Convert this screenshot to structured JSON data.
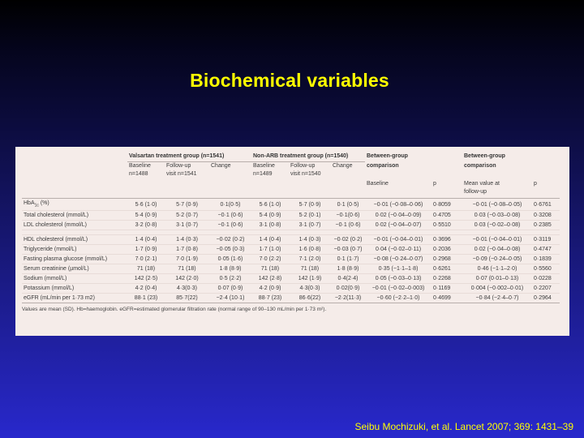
{
  "slide": {
    "title": "Biochemical variables",
    "citation": "Seibu Mochizuki, et al. Lancet 2007; 369: 1431–39"
  },
  "table": {
    "groups": {
      "valsartan": "Valsartan treatment group (n=1541)",
      "nonarb": "Non-ARB treatment group (n=1540)",
      "between_baseline_l1": "Between-group",
      "between_baseline_l2": "comparison",
      "between_followup_l1": "Between-group",
      "between_followup_l2": "comparison"
    },
    "subheaders": {
      "val_baseline_l1": "Baseline",
      "val_baseline_l2": "n=1488",
      "val_followup_l1": "Follow-up",
      "val_followup_l2": "visit  n=1541",
      "val_change": "Change",
      "non_baseline_l1": "Baseline",
      "non_baseline_l2": "n=1489",
      "non_followup_l1": "Follow-up",
      "non_followup_l2": "visit  n=1540",
      "non_change": "Change",
      "bg_baseline": "Baseline",
      "bg_p": "p",
      "fu_mean_l1": "Mean value at",
      "fu_mean_l2": "follow-up",
      "fu_p": "p"
    },
    "rows": [
      {
        "label": "HbA1c (%)",
        "vb": "5·6 (1·0)",
        "vf": "5·7 (0·9)",
        "vc": "0·1(0·5)",
        "nb": "5·6 (1·0)",
        "nf": "5·7 (0·9)",
        "nc": "0·1 (0·5)",
        "bgb": "−0·01 (−0·08–0·06)",
        "bgp": "0·8059",
        "fum": "−0·01 (−0·08–0·05)",
        "fup": "0·6761"
      },
      {
        "label": "Total cholesterol (mmol/L)",
        "vb": "5·4 (0·9)",
        "vf": "5·2 (0·7)",
        "vc": "−0·1 (0·6)",
        "nb": "5·4 (0·9)",
        "nf": "5·2 (0·1)",
        "nc": "−0·1(0·6)",
        "bgb": "0·02 (−0·04–0·09)",
        "bgp": "0·4705",
        "fum": "0·03 (−0·03–0·08)",
        "fup": "0·3208"
      },
      {
        "label": "LDL cholesterol (mmol/L)",
        "vb": "3·2 (0·8)",
        "vf": "3·1 (0·7)",
        "vc": "−0·1 (0·6)",
        "nb": "3·1 (0·8)",
        "nf": "3·1 (0·7)",
        "nc": "−0·1 (0·6)",
        "bgb": "0·02 (−0·04–0·07)",
        "bgp": "0·5510",
        "fum": "0·03 (−0·02–0·08)",
        "fup": "0·2385",
        "gap_after": true
      },
      {
        "label": "HDL cholesterol (mmol/L)",
        "vb": "1·4 (0·4)",
        "vf": "1·4 (0·3)",
        "vc": "−0·02 (0·2)",
        "nb": "1·4 (0·4)",
        "nf": "1·4 (0·3)",
        "nc": "−0·02 (0·2)",
        "bgb": "−0·01 (−0·04–0·01)",
        "bgp": "0·3696",
        "fum": "−0·01 (−0·04–0·01)",
        "fup": "0·3119"
      },
      {
        "label": "Triglyceride (mmol/L)",
        "vb": "1·7 (0·9)",
        "vf": "1·7 (0·8)",
        "vc": "−0·05 (0·3)",
        "nb": "1·7 (1·0)",
        "nf": "1·6 (0·8)",
        "nc": "−0·03 (0·7)",
        "bgb": "0·04 (−0·02–0·11)",
        "bgp": "0·2036",
        "fum": "0·02 (−0·04–0·08)",
        "fup": "0·4747"
      },
      {
        "label": "Fasting plasma glucose (mmol/L)",
        "vb": "7·0 (2·1)",
        "vf": "7·0 (1·9)",
        "vc": "0·05 (1·6)",
        "nb": "7·0 (2·2)",
        "nf": "7·1 (2·0)",
        "nc": "0·1 (1·7)",
        "bgb": "−0·08 (−0·24–0·07)",
        "bgp": "0·2968",
        "fum": "−0·09 (−0·24–0·05)",
        "fup": "0·1839"
      },
      {
        "label": "Serum creatinine (µmol/L)",
        "vb": "71 (18)",
        "vf": "71 (18)",
        "vc": "1·8 (8·9)",
        "nb": "71 (18)",
        "nf": "71 (18)",
        "nc": "1·8 (8·9)",
        "bgb": "0·35 (−1·1–1·8)",
        "bgp": "0·6261",
        "fum": "0·46 (−1·1–2·0)",
        "fup": "0·5560"
      },
      {
        "label": "Sodium (mmol/L)",
        "vb": "142 (2·5)",
        "vf": "142 (2·0)",
        "vc": "0·5 (2·2)",
        "nb": "142 (2·8)",
        "nf": "142 (1·9)",
        "nc": "0·4(2·4)",
        "bgb": "0·05 (−0·03–0·13)",
        "bgp": "0·2268",
        "fum": "0·07 (0·01–0·13)",
        "fup": "0·0228"
      },
      {
        "label": "Potassium (mmol/L)",
        "vb": "4·2 (0·4)",
        "vf": "4·3(0·3)",
        "vc": "0·07 (0·9)",
        "nb": "4·2 (0·9)",
        "nf": "4·3(0·3)",
        "nc": "0·02(0·9)",
        "bgb": "−0·01 (−0·02–0·003)",
        "bgp": "0·1169",
        "fum": "0·004 (−0·002–0·01)",
        "fup": "0·2207"
      },
      {
        "label": "eGFR (mL/min per 1·73 m2)",
        "vb": "88·1 (23)",
        "vf": "85·7(22)",
        "vc": "−2·4 (10·1)",
        "nb": "88·7 (23)",
        "nf": "86·6(22)",
        "nc": "−2·2(11·3)",
        "bgb": "−0·60 (−2·2–1·0)",
        "bgp": "0·4699",
        "fum": "−0·84 (−2·4–0·7)",
        "fup": "0·2964"
      }
    ],
    "footnote": "Values are mean (SD). Hb=haemoglobin. eGFR=estimated glomerular filtration rate (normal range of 90–130 mL/min per 1·73 m²)."
  },
  "colors": {
    "title": "#ffff00",
    "citation": "#ffff00",
    "table_background": "#f5ece9"
  }
}
